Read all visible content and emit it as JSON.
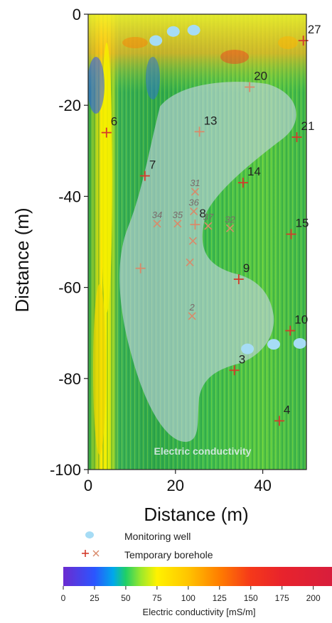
{
  "chart_data": {
    "type": "heatmap",
    "title": "",
    "xlabel": "Distance (m)",
    "ylabel": "Distance (m)",
    "xlim": [
      0,
      50
    ],
    "ylim": [
      -100,
      0
    ],
    "xticks": [
      0,
      20,
      40
    ],
    "yticks": [
      0,
      -20,
      -40,
      -60,
      -80,
      -100
    ],
    "map_annotation": "Electric conductivity",
    "monitoring_wells": [
      {
        "x": 15.5,
        "y": -5.8
      },
      {
        "x": 19.5,
        "y": -3.8
      },
      {
        "x": 24.2,
        "y": -3.5
      },
      {
        "x": 36.5,
        "y": -73.5
      },
      {
        "x": 42.5,
        "y": -72.5
      },
      {
        "x": 48.5,
        "y": -72.3
      }
    ],
    "boreholes": [
      {
        "label": "27",
        "x": 49.3,
        "y": -5.8,
        "marker": "plus",
        "color": "#d43b2b"
      },
      {
        "label": "20",
        "x": 37.0,
        "y": -16.0,
        "marker": "plus",
        "color": "#d98a6a"
      },
      {
        "label": "6",
        "x": 4.2,
        "y": -26.0,
        "marker": "plus",
        "color": "#d43b2b"
      },
      {
        "label": "13",
        "x": 25.5,
        "y": -25.8,
        "marker": "plus",
        "color": "#d98a6a"
      },
      {
        "label": "21",
        "x": 47.8,
        "y": -27.0,
        "marker": "plus",
        "color": "#d43b2b"
      },
      {
        "label": "7",
        "x": 13.0,
        "y": -35.5,
        "marker": "plus",
        "color": "#d43b2b"
      },
      {
        "label": "14",
        "x": 35.5,
        "y": -37.0,
        "marker": "plus",
        "color": "#d43b2b"
      },
      {
        "label": "31",
        "x": 24.5,
        "y": -39.0,
        "marker": "cross",
        "color": "#d98a6a"
      },
      {
        "label": "36",
        "x": 24.2,
        "y": -43.3,
        "marker": "cross",
        "color": "#d98a6a"
      },
      {
        "label": "34",
        "x": 15.8,
        "y": -46.0,
        "marker": "cross",
        "color": "#d98a6a"
      },
      {
        "label": "35",
        "x": 20.5,
        "y": -46.0,
        "marker": "cross",
        "color": "#d98a6a"
      },
      {
        "label": "8",
        "x": 24.5,
        "y": -46.2,
        "marker": "plus",
        "color": "#d98a6a"
      },
      {
        "label": "37",
        "x": 27.5,
        "y": -46.5,
        "marker": "cross",
        "color": "#d98a6a"
      },
      {
        "label": "32",
        "x": 32.5,
        "y": -47.0,
        "marker": "cross",
        "color": "#d98a6a"
      },
      {
        "label": "15",
        "x": 46.5,
        "y": -48.3,
        "marker": "plus",
        "color": "#d43b2b"
      },
      {
        "label": "",
        "x": 24.0,
        "y": -49.8,
        "marker": "cross",
        "color": "#d98a6a"
      },
      {
        "label": "",
        "x": 23.3,
        "y": -54.5,
        "marker": "cross",
        "color": "#d98a6a"
      },
      {
        "label": "",
        "x": 12.0,
        "y": -55.8,
        "marker": "plus",
        "color": "#d98a6a"
      },
      {
        "label": "9",
        "x": 34.5,
        "y": -58.2,
        "marker": "plus",
        "color": "#d43b2b"
      },
      {
        "label": "2",
        "x": 23.8,
        "y": -66.3,
        "marker": "cross",
        "color": "#d98a6a"
      },
      {
        "label": "10",
        "x": 46.3,
        "y": -69.5,
        "marker": "plus",
        "color": "#d43b2b"
      },
      {
        "label": "3",
        "x": 33.5,
        "y": -78.2,
        "marker": "plus",
        "color": "#d43b2b"
      },
      {
        "label": "4",
        "x": 43.8,
        "y": -89.3,
        "marker": "plus",
        "color": "#d43b2b"
      }
    ],
    "legend": {
      "placement": "below-plot",
      "monitoring_well": "Monitoring well",
      "temporary_borehole": "Temporary borehole"
    },
    "colorbar": {
      "label": "Electric conductivity [mS/m]",
      "range": [
        0,
        215
      ],
      "ticks": [
        0,
        25,
        50,
        75,
        100,
        125,
        150,
        175,
        200
      ],
      "stops": [
        {
          "v": 0,
          "c": "#6c2bd0"
        },
        {
          "v": 25,
          "c": "#2b55ff"
        },
        {
          "v": 40,
          "c": "#00a8ea"
        },
        {
          "v": 50,
          "c": "#1fcf66"
        },
        {
          "v": 62,
          "c": "#9be82c"
        },
        {
          "v": 75,
          "c": "#fff200"
        },
        {
          "v": 100,
          "c": "#ffc400"
        },
        {
          "v": 125,
          "c": "#ff7d00"
        },
        {
          "v": 150,
          "c": "#f5381a"
        },
        {
          "v": 175,
          "c": "#e8232c"
        },
        {
          "v": 215,
          "c": "#d81e3c"
        }
      ]
    },
    "colors": {
      "map_background": "#3fbf5f",
      "anomaly_overlay": "#c9d6ea",
      "monitoring_well": "#a6dcf5",
      "borehole_dark": "#d43b2b",
      "borehole_light": "#d98a6a"
    }
  }
}
